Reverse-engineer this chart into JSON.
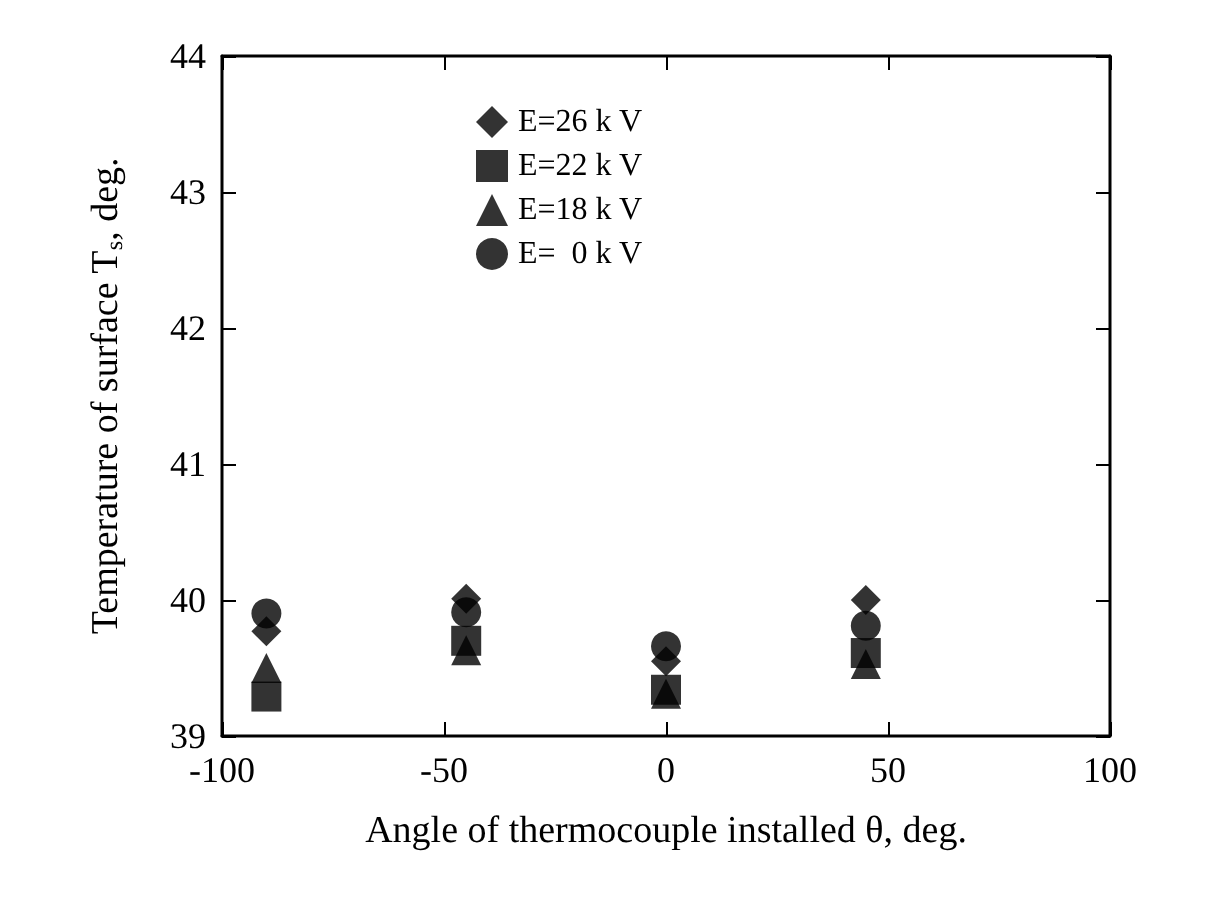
{
  "chart_data": {
    "type": "scatter",
    "xlabel": "Angle of thermocouple installed θ, deg.",
    "ylabel": "Temperature of surface T$_{s}$, deg.",
    "x": [
      -90,
      -45,
      0,
      45
    ],
    "series": [
      {
        "name": "E=26 k V",
        "color": "#000000",
        "marker": "diamond",
        "values": [
          39.77,
          40.01,
          39.55,
          40.0
        ]
      },
      {
        "name": "E=22 k V",
        "color": "#000000",
        "marker": "square",
        "values": [
          39.29,
          39.7,
          39.34,
          39.61
        ]
      },
      {
        "name": "E=18 k V",
        "color": "#000000",
        "marker": "triangle",
        "values": [
          39.5,
          39.63,
          39.31,
          39.53
        ]
      },
      {
        "name": "E=  0 k V",
        "color": "#000000",
        "marker": "circle",
        "values": [
          39.9,
          39.91,
          39.66,
          39.81
        ]
      }
    ],
    "xlim": [
      -100,
      100
    ],
    "xticks": [
      -100,
      -50,
      0,
      50,
      100
    ],
    "ylim": [
      39,
      44
    ],
    "yticks": [
      39,
      40,
      41,
      42,
      43,
      44
    ],
    "grid": false,
    "legend": "top"
  }
}
